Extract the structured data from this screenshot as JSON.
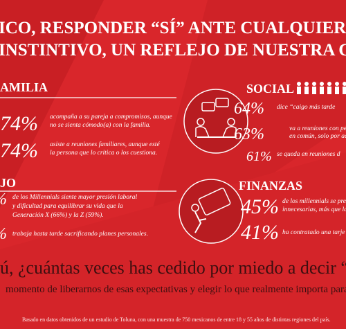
{
  "header": {
    "title": [
      "ICO, RESPONDER “SÍ” ANTE CUALQUIER PRI",
      "INSTINTIVO, UN REFLEJO DE NUESTRA CU"
    ]
  },
  "sections": [
    {
      "heading": "AMILIA",
      "items": [
        {
          "percent": "74%",
          "text": [
            "acompaña a su pareja a  compromisos, aunque",
            "no se sienta cómodo(a) con la familia."
          ]
        },
        {
          "percent": "74%",
          "text": [
            "asiste a reuniones familiares, aunque esté",
            "la persona que lo critica o los cuestiona."
          ]
        }
      ]
    },
    {
      "heading": "JO",
      "items": [
        {
          "percent": "%",
          "text": [
            "de los Millennials siente mayor presión laboral",
            "y dificultad para equilibrar su vida que la",
            "Generación X (66%) y la Z (59%)."
          ]
        },
        {
          "percent": "%",
          "text": [
            "trabaja hasta tarde sacrificando planes personales."
          ]
        }
      ]
    },
    {
      "heading": "SOCIAL",
      "items": [
        {
          "percent": "64%",
          "text": [
            "dice “caigo más tarde"
          ]
        },
        {
          "percent": "63%",
          "text": [
            "va a reuniones con pe",
            "en común, solo por acep"
          ]
        },
        {
          "percent": "61%",
          "text": [
            "se queda en reuniones d"
          ]
        }
      ]
    },
    {
      "heading": "FINANZAS",
      "items": [
        {
          "percent": "45%",
          "text": [
            "de los millennials se preoc",
            "innecesarias, más que la"
          ]
        },
        {
          "percent": "41%",
          "text": [
            "ha contratado una tarje"
          ]
        }
      ]
    }
  ],
  "closing": {
    "question": "ú, ¿cuántas veces has cedido por miedo a decir “n",
    "text": "momento de liberarnos de esas expectativas y elegir lo que realmente importa para"
  },
  "footer": {
    "source": "Basado en datos obtenidos de un estudio de Toluna, con una muestra de 750 mexicanos de entre 18 y 55 años de distintas regiones del país."
  }
}
